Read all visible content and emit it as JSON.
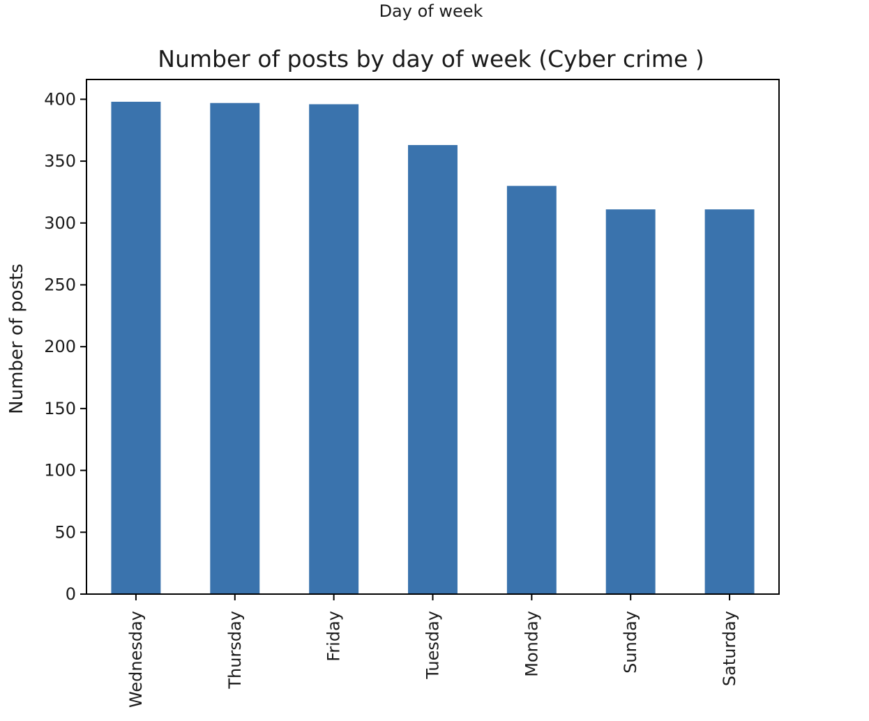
{
  "header": {
    "top_label": "Day of week"
  },
  "chart_data": {
    "type": "bar",
    "title": "Number of posts by day of week (Cyber crime )",
    "xlabel": "",
    "ylabel": "Number of posts",
    "categories": [
      "Wednesday",
      "Thursday",
      "Friday",
      "Tuesday",
      "Monday",
      "Sunday",
      "Saturday"
    ],
    "values": [
      398,
      397,
      396,
      363,
      330,
      311,
      311
    ],
    "ylim": [
      0,
      416
    ],
    "yticks": [
      0,
      50,
      100,
      150,
      200,
      250,
      300,
      350,
      400
    ],
    "grid": false,
    "legend": "none",
    "bar_color": "#3a73ad"
  }
}
